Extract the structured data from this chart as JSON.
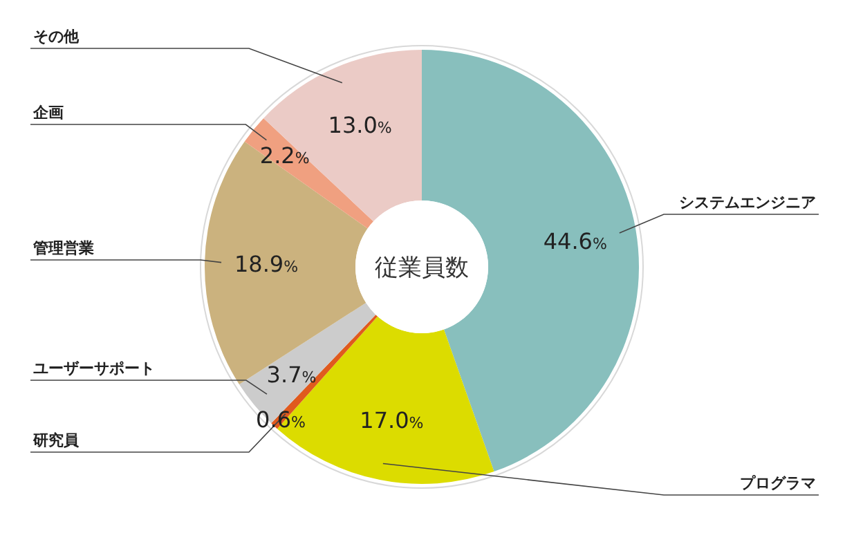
{
  "chart_data": {
    "type": "donut",
    "title": "従業員数",
    "categories": [
      "システムエンジニア",
      "プログラマ",
      "研究員",
      "ユーザーサポート",
      "管理営業",
      "企画",
      "その他"
    ],
    "values": [
      44.6,
      17.0,
      0.6,
      3.7,
      18.9,
      2.2,
      13.0
    ],
    "colors": [
      "#88bfbd",
      "#dcdc00",
      "#e05a1e",
      "#cccccc",
      "#cbb27e",
      "#f0a080",
      "#ebcbc6"
    ],
    "value_labels": [
      "44.6%",
      "17.0%",
      "0.6%",
      "3.7%",
      "18.9%",
      "2.2%",
      "13.0%"
    ]
  }
}
